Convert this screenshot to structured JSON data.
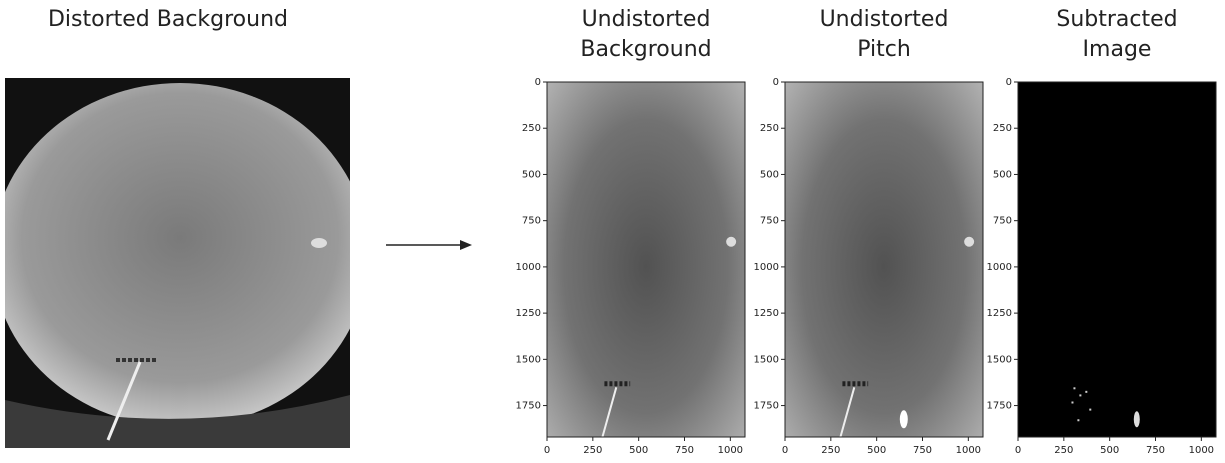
{
  "left_title": "Distorted Background",
  "panels": [
    {
      "title_lines": [
        "Undistorted",
        "Background"
      ],
      "xlim": [
        0,
        1080
      ],
      "ylim": [
        1920,
        0
      ],
      "xticks": [
        0,
        250,
        500,
        750,
        1000
      ],
      "yticks": [
        0,
        250,
        500,
        750,
        1000,
        1250,
        1500,
        1750
      ]
    },
    {
      "title_lines": [
        "Undistorted",
        "Pitch"
      ],
      "xlim": [
        0,
        1080
      ],
      "ylim": [
        1920,
        0
      ],
      "xticks": [
        0,
        250,
        500,
        750,
        1000
      ],
      "yticks": [
        0,
        250,
        500,
        750,
        1000,
        1250,
        1500,
        1750
      ]
    },
    {
      "title_lines": [
        "Subtracted",
        "Image"
      ],
      "xlim": [
        0,
        1080
      ],
      "ylim": [
        1920,
        0
      ],
      "xticks": [
        0,
        250,
        500,
        750,
        1000
      ],
      "yticks": [
        0,
        250,
        500,
        750,
        1000,
        1250,
        1500,
        1750
      ]
    }
  ]
}
